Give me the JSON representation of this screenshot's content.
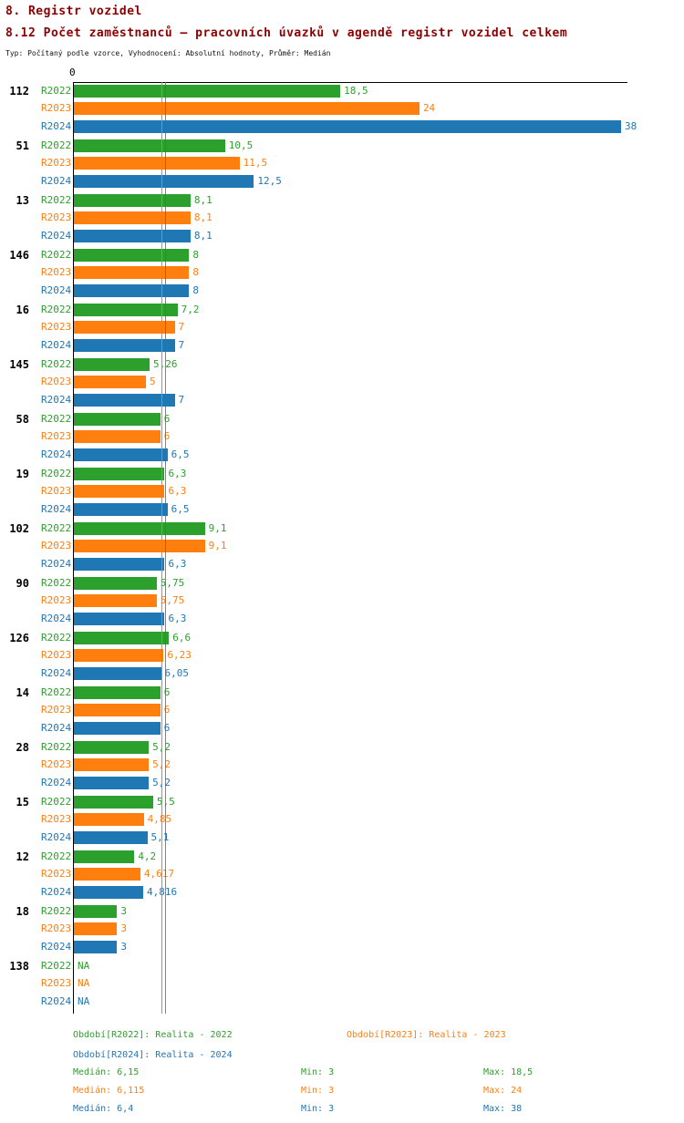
{
  "header": {
    "chapter": "8. Registr vozidel",
    "title": "8.12 Počet zaměstnanců – pracovních úvazků v agendě registr vozidel celkem",
    "subtitle": "Typ: Počítaný podle vzorce, Vyhodnocení: Absolutní hodnoty, Průměr: Medián"
  },
  "chart_data": {
    "type": "bar",
    "orientation": "horizontal",
    "x_origin_label": "0",
    "x_max": 38,
    "grid": false,
    "series": [
      {
        "name": "R2022",
        "legend_label": "Období[R2022]: Realita - 2022",
        "color": "#2ca02c",
        "median": 6.15,
        "min": 3,
        "max": 18.5
      },
      {
        "name": "R2023",
        "legend_label": "Období[R2023]: Realita - 2023",
        "color": "#ff7f0e",
        "median": 6.115,
        "min": 3,
        "max": 24
      },
      {
        "name": "R2024",
        "legend_label": "Období[R2024]: Realita - 2024",
        "color": "#1f77b4",
        "median": 6.4,
        "min": 3,
        "max": 38
      }
    ],
    "groups": [
      {
        "label": "112",
        "values": [
          18.5,
          24,
          38
        ],
        "display": [
          "18,5",
          "24",
          "38"
        ]
      },
      {
        "label": "51",
        "values": [
          10.5,
          11.5,
          12.5
        ],
        "display": [
          "10,5",
          "11,5",
          "12,5"
        ]
      },
      {
        "label": "13",
        "values": [
          8.1,
          8.1,
          8.1
        ],
        "display": [
          "8,1",
          "8,1",
          "8,1"
        ]
      },
      {
        "label": "146",
        "values": [
          8,
          8,
          8
        ],
        "display": [
          "8",
          "8",
          "8"
        ]
      },
      {
        "label": "16",
        "values": [
          7.2,
          7,
          7
        ],
        "display": [
          "7,2",
          "7",
          "7"
        ]
      },
      {
        "label": "145",
        "values": [
          5.26,
          5,
          7
        ],
        "display": [
          "5,26",
          "5",
          "7"
        ]
      },
      {
        "label": "58",
        "values": [
          6,
          6,
          6.5
        ],
        "display": [
          "6",
          "6",
          "6,5"
        ]
      },
      {
        "label": "19",
        "values": [
          6.3,
          6.3,
          6.5
        ],
        "display": [
          "6,3",
          "6,3",
          "6,5"
        ]
      },
      {
        "label": "102",
        "values": [
          9.1,
          9.1,
          6.3
        ],
        "display": [
          "9,1",
          "9,1",
          "6,3"
        ]
      },
      {
        "label": "90",
        "values": [
          5.75,
          5.75,
          6.3
        ],
        "display": [
          "5,75",
          "5,75",
          "6,3"
        ]
      },
      {
        "label": "126",
        "values": [
          6.6,
          6.23,
          6.05
        ],
        "display": [
          "6,6",
          "6,23",
          "6,05"
        ]
      },
      {
        "label": "14",
        "values": [
          6,
          6,
          6
        ],
        "display": [
          "6",
          "6",
          "6"
        ]
      },
      {
        "label": "28",
        "values": [
          5.2,
          5.2,
          5.2
        ],
        "display": [
          "5,2",
          "5,2",
          "5,2"
        ]
      },
      {
        "label": "15",
        "values": [
          5.5,
          4.85,
          5.1
        ],
        "display": [
          "5,5",
          "4,85",
          "5,1"
        ]
      },
      {
        "label": "12",
        "values": [
          4.2,
          4.617,
          4.816
        ],
        "display": [
          "4,2",
          "4,617",
          "4,816"
        ]
      },
      {
        "label": "18",
        "values": [
          3,
          3,
          3
        ],
        "display": [
          "3",
          "3",
          "3"
        ]
      },
      {
        "label": "138",
        "values": [
          null,
          null,
          null
        ],
        "display": [
          "NA",
          "NA",
          "NA"
        ]
      }
    ]
  },
  "stats": {
    "rows": [
      {
        "median": "Medián: 6,15",
        "min": "Min: 3",
        "max": "Max: 18,5"
      },
      {
        "median": "Medián: 6,115",
        "min": "Min: 3",
        "max": "Max: 24"
      },
      {
        "median": "Medián: 6,4",
        "min": "Min: 3",
        "max": "Max: 38"
      }
    ]
  }
}
